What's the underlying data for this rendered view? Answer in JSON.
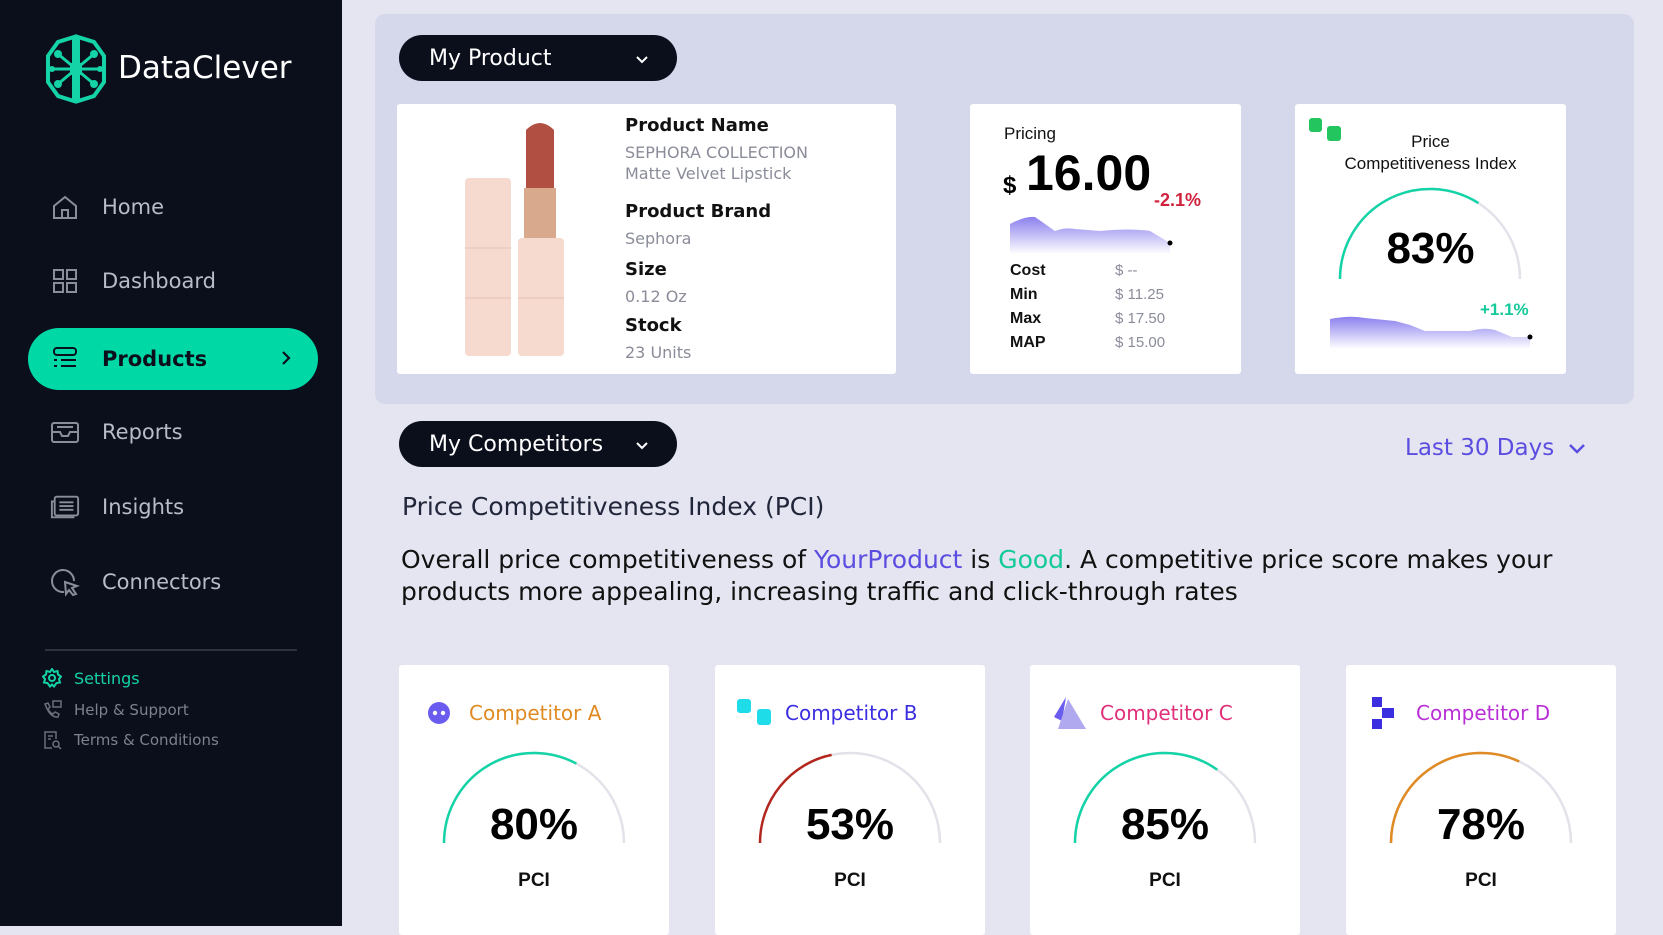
{
  "brand": {
    "name": "DataClever",
    "accent": "#00d9a6"
  },
  "nav": [
    {
      "label": "Home",
      "icon": "home-icon"
    },
    {
      "label": "Dashboard",
      "icon": "grid-icon"
    },
    {
      "label": "Products",
      "icon": "list-icon",
      "active": true
    },
    {
      "label": "Reports",
      "icon": "inbox-icon"
    },
    {
      "label": "Insights",
      "icon": "insights-icon"
    },
    {
      "label": "Connectors",
      "icon": "connectors-icon"
    }
  ],
  "footer_nav": [
    {
      "label": "Settings",
      "icon": "gear-icon"
    },
    {
      "label": "Help & Support",
      "icon": "phone-chat-icon"
    },
    {
      "label": "Terms & Conditions",
      "icon": "document-search-icon"
    }
  ],
  "product_section": {
    "title": "My Product",
    "product": {
      "name_label": "Product Name",
      "name": "SEPHORA COLLECTION",
      "name2": "Matte Velvet Lipstick",
      "brand_label": "Product Brand",
      "brand": "Sephora",
      "size_label": "Size",
      "size": "0.12 Oz",
      "stock_label": "Stock",
      "stock": "23 Units"
    },
    "pricing": {
      "title": "Pricing",
      "currency": "$",
      "price": "16.00",
      "change": "-2.1%",
      "change_color": "#d0223c",
      "rows": [
        {
          "label": "Cost",
          "value": "$ --"
        },
        {
          "label": "Min",
          "value": "$ 11.25"
        },
        {
          "label": "Max",
          "value": "$ 17.50"
        },
        {
          "label": "MAP",
          "value": "$ 15.00"
        }
      ]
    },
    "pci": {
      "title1": "Price",
      "title2": "Competitiveness Index",
      "value": "83%",
      "fraction": 0.83,
      "change": "+1.1%",
      "change_color": "#14c99a"
    }
  },
  "competitors_section": {
    "title": "My Competitors",
    "range": "Last 30 Days",
    "heading": "Price Competitiveness Index (PCI)",
    "summary": {
      "p1": "Overall price competitiveness of ",
      "product": "YourProduct",
      "p2": " is ",
      "rating": "Good",
      "p3": ". A competitive price score makes your products more appealing, increasing traffic and click-through rates"
    },
    "competitors": [
      {
        "name": "Competitor A",
        "name_color": "#e08a24",
        "value": "80%",
        "fraction": 0.8,
        "gauge_color": "#14d3a7",
        "label": "PCI"
      },
      {
        "name": "Competitor B",
        "name_color": "#3b2ee0",
        "value": "53%",
        "fraction": 0.53,
        "gauge_color": "#b3261e",
        "label": "PCI"
      },
      {
        "name": "Competitor C",
        "name_color": "#e0307a",
        "value": "85%",
        "fraction": 0.85,
        "gauge_color": "#14d3a7",
        "label": "PCI"
      },
      {
        "name": "Competitor D",
        "name_color": "#b82fd6",
        "value": "78%",
        "fraction": 0.78,
        "gauge_color": "#e08a24",
        "label": "PCI"
      }
    ]
  }
}
